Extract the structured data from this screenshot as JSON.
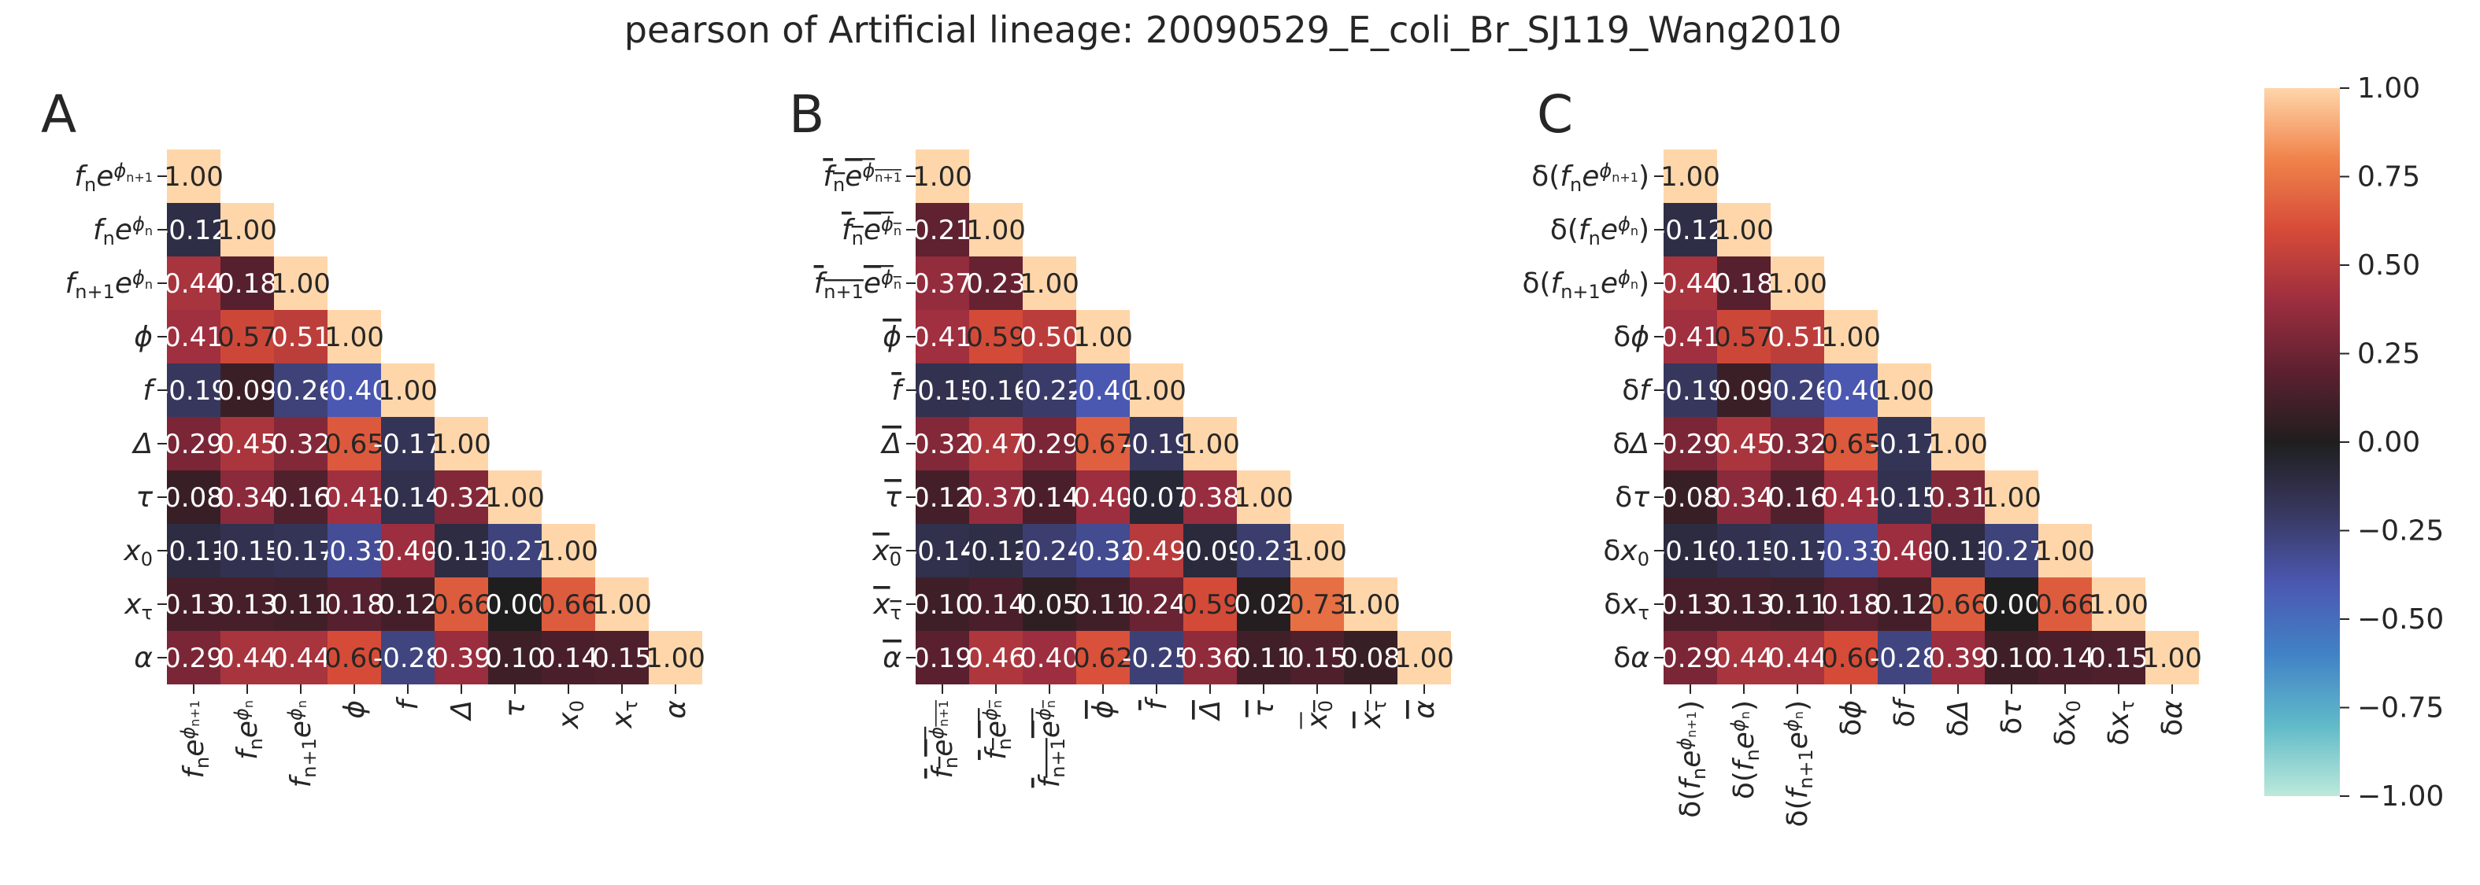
{
  "title": "pearson of Artificial lineage: 20090529_E_coli_Br_SJ119_Wang2010",
  "colormap": "icefire",
  "colorbar": {
    "range": [
      -1.0,
      1.0
    ],
    "ticks": [
      1.0,
      0.75,
      0.5,
      0.25,
      0.0,
      -0.25,
      -0.5,
      -0.75,
      -1.0
    ],
    "tick_labels": [
      "1.00",
      "0.75",
      "0.50",
      "0.25",
      "0.00",
      "−0.25",
      "−0.50",
      "−0.75",
      "−1.00"
    ]
  },
  "chart_data": [
    {
      "type": "heatmap",
      "panel_label": "A",
      "mask": "lower-triangle",
      "labels": [
        {
          "base": "f",
          "sub": "n",
          "exp": "ϕ",
          "expsub": "n+1"
        },
        {
          "base": "f",
          "sub": "n",
          "exp": "ϕ",
          "expsub": "n"
        },
        {
          "base": "f",
          "sub": "n+1",
          "exp": "ϕ",
          "expsub": "n"
        },
        {
          "base": "ϕ"
        },
        {
          "base": "f"
        },
        {
          "base": "Δ"
        },
        {
          "base": "τ"
        },
        {
          "base": "x",
          "sub": "0"
        },
        {
          "base": "x",
          "sub": "τ"
        },
        {
          "base": "α"
        }
      ],
      "values": [
        [
          1.0
        ],
        [
          -0.12,
          1.0
        ],
        [
          0.44,
          0.18,
          1.0
        ],
        [
          0.41,
          0.57,
          0.51,
          1.0
        ],
        [
          -0.19,
          0.09,
          -0.26,
          -0.4,
          1.0
        ],
        [
          0.29,
          0.45,
          0.32,
          0.65,
          -0.17,
          1.0
        ],
        [
          0.08,
          0.34,
          0.16,
          0.41,
          -0.14,
          0.32,
          1.0
        ],
        [
          -0.11,
          -0.15,
          -0.17,
          -0.33,
          0.4,
          -0.11,
          -0.27,
          1.0
        ],
        [
          0.13,
          0.13,
          0.11,
          0.18,
          0.12,
          0.66,
          0.0,
          0.66,
          1.0
        ],
        [
          0.29,
          0.44,
          0.44,
          0.6,
          -0.28,
          0.39,
          0.1,
          0.14,
          0.15,
          1.0
        ]
      ]
    },
    {
      "type": "heatmap",
      "panel_label": "B",
      "mask": "lower-triangle",
      "labels": [
        {
          "base": "f",
          "sub": "n",
          "exp": "ϕ",
          "expsub": "n+1",
          "bar": true
        },
        {
          "base": "f",
          "sub": "n",
          "exp": "ϕ",
          "expsub": "n",
          "bar": true
        },
        {
          "base": "f",
          "sub": "n+1",
          "exp": "ϕ",
          "expsub": "n",
          "bar": true
        },
        {
          "base": "ϕ",
          "bar": true
        },
        {
          "base": "f",
          "bar": true
        },
        {
          "base": "Δ",
          "bar": true
        },
        {
          "base": "τ",
          "bar": true
        },
        {
          "base": "x",
          "sub": "0",
          "bar": true
        },
        {
          "base": "x",
          "sub": "τ",
          "bar": true
        },
        {
          "base": "α",
          "bar": true
        }
      ],
      "values": [
        [
          1.0
        ],
        [
          0.21,
          1.0
        ],
        [
          0.37,
          0.23,
          1.0
        ],
        [
          0.41,
          0.59,
          0.5,
          1.0
        ],
        [
          -0.15,
          -0.16,
          -0.22,
          -0.4,
          1.0
        ],
        [
          0.32,
          0.47,
          0.29,
          0.67,
          -0.19,
          1.0
        ],
        [
          0.12,
          0.37,
          0.14,
          0.4,
          -0.07,
          0.38,
          1.0
        ],
        [
          -0.14,
          -0.12,
          -0.24,
          -0.32,
          0.49,
          -0.09,
          -0.23,
          1.0
        ],
        [
          0.1,
          0.14,
          0.05,
          0.11,
          0.24,
          0.59,
          0.02,
          0.73,
          1.0
        ],
        [
          0.19,
          0.46,
          0.4,
          0.62,
          -0.25,
          0.36,
          0.11,
          0.15,
          0.08,
          1.0
        ]
      ]
    },
    {
      "type": "heatmap",
      "panel_label": "C",
      "mask": "lower-triangle",
      "labels": [
        {
          "pre": "δ(",
          "base": "f",
          "sub": "n",
          "exp": "ϕ",
          "expsub": "n+1",
          "post": ")"
        },
        {
          "pre": "δ(",
          "base": "f",
          "sub": "n",
          "exp": "ϕ",
          "expsub": "n",
          "post": ")"
        },
        {
          "pre": "δ(",
          "base": "f",
          "sub": "n+1",
          "exp": "ϕ",
          "expsub": "n",
          "post": ")"
        },
        {
          "pre": "δ",
          "base": "ϕ"
        },
        {
          "pre": "δ",
          "base": "f"
        },
        {
          "pre": "δ",
          "base": "Δ"
        },
        {
          "pre": "δ",
          "base": "τ"
        },
        {
          "pre": "δ",
          "base": "x",
          "sub": "0"
        },
        {
          "pre": "δ",
          "base": "x",
          "sub": "τ"
        },
        {
          "pre": "δ",
          "base": "α"
        }
      ],
      "values": [
        [
          1.0
        ],
        [
          -0.12,
          1.0
        ],
        [
          0.44,
          0.18,
          1.0
        ],
        [
          0.41,
          0.57,
          0.51,
          1.0
        ],
        [
          -0.19,
          0.09,
          -0.26,
          -0.4,
          1.0
        ],
        [
          0.29,
          0.45,
          0.32,
          0.65,
          -0.17,
          1.0
        ],
        [
          0.08,
          0.34,
          0.16,
          0.41,
          -0.15,
          0.31,
          1.0
        ],
        [
          -0.1,
          -0.15,
          -0.17,
          -0.33,
          0.4,
          -0.11,
          -0.27,
          1.0
        ],
        [
          0.13,
          0.13,
          0.11,
          0.18,
          0.12,
          0.66,
          0.0,
          0.66,
          1.0
        ],
        [
          0.29,
          0.44,
          0.44,
          0.6,
          -0.28,
          0.39,
          0.1,
          0.14,
          0.15,
          1.0
        ]
      ]
    }
  ]
}
